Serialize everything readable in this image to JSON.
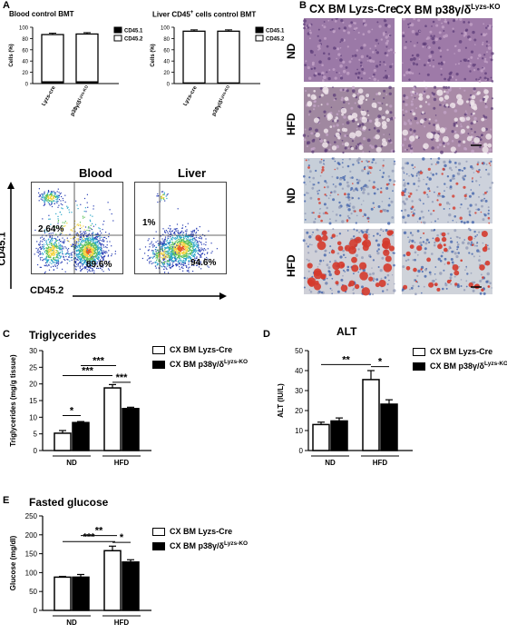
{
  "panel_letters": {
    "a": "A",
    "b": "B",
    "c": "C",
    "d": "D",
    "e": "E"
  },
  "panel_a": {
    "chart1": {
      "title": "Blood control BMT",
      "ylabel": "Cells (%)",
      "legend": [
        "CD45.1",
        "CD45.2"
      ],
      "categories": [
        "Lyzs-cre",
        "p38γ/δ Lyzs-KO"
      ]
    },
    "chart2": {
      "title": "Liver CD45+ cells control BMT",
      "title_sup": "+",
      "ylabel": "Cells (%)",
      "legend": [
        "CD45.1",
        "CD45.2"
      ],
      "categories": [
        "Lyzs-cre",
        "p38γ/δ Lyzs-KO"
      ]
    },
    "flow": {
      "blood_title": "Blood",
      "liver_title": "Liver",
      "ylabel": "CD45.1",
      "xlabel": "CD45.2",
      "blood_top_pct": "2.64%",
      "blood_bottom_pct": "89.6%",
      "liver_top_pct": "1%",
      "liver_bottom_pct": "94.6%"
    }
  },
  "panel_b": {
    "col1": "CX BM Lyzs-Cre",
    "col2_main": "CX BM p38γ/δ",
    "col2_sup": "Lyzs-KO",
    "rows": [
      "ND",
      "HFD",
      "ND",
      "HFD"
    ]
  },
  "legend": {
    "cre": "CX BM Lyzs-Cre",
    "ko_main": "CX BM p38γ/δ",
    "ko_sup": "Lyzs-KO"
  },
  "colors": {
    "he_bg": "#9a7aa3",
    "oro_bg": "#c9d0dc",
    "oil_red": "#d43a2c",
    "flow_hot": "#f2d23a"
  },
  "chart_data": [
    {
      "id": "blood_bmt",
      "type": "bar",
      "title": "Blood control BMT",
      "ylabel": "Cells (%)",
      "categories": [
        "Lyzs-cre",
        "p38γ/δ Lyzs-KO"
      ],
      "series": [
        {
          "name": "CD45.1",
          "values": [
            3,
            3
          ]
        },
        {
          "name": "CD45.2",
          "values": [
            84,
            85
          ]
        }
      ],
      "ylim": [
        0,
        100
      ],
      "yticks": [
        0,
        20,
        40,
        60,
        80,
        100
      ]
    },
    {
      "id": "liver_bmt",
      "type": "bar",
      "title": "Liver CD45+ cells control BMT",
      "ylabel": "Cells (%)",
      "categories": [
        "Lyzs-cre",
        "p38γ/δ Lyzs-KO"
      ],
      "series": [
        {
          "name": "CD45.1",
          "values": [
            1,
            1
          ]
        },
        {
          "name": "CD45.2",
          "values": [
            92,
            92
          ]
        }
      ],
      "ylim": [
        0,
        100
      ],
      "yticks": [
        0,
        20,
        40,
        60,
        80,
        100
      ]
    },
    {
      "id": "triglycerides",
      "type": "bar",
      "title": "Triglycerides",
      "ylabel": "Triglycerides (mg/g tissue)",
      "groups": [
        "ND",
        "HFD"
      ],
      "series": [
        {
          "name": "CX BM Lyzs-Cre",
          "values": [
            5.2,
            18.8
          ],
          "err": [
            0.8,
            1.0
          ]
        },
        {
          "name": "CX BM p38γ/δ Lyzs-KO",
          "values": [
            8.4,
            12.6
          ],
          "err": [
            0.3,
            0.4
          ]
        }
      ],
      "ylim": [
        0,
        30
      ],
      "yticks": [
        0,
        5,
        10,
        15,
        20,
        25,
        30
      ],
      "sig": [
        "*",
        "***",
        "***",
        "***"
      ]
    },
    {
      "id": "alt",
      "type": "bar",
      "title": "ALT",
      "ylabel": "ALT (IU/L)",
      "groups": [
        "ND",
        "HFD"
      ],
      "series": [
        {
          "name": "CX BM Lyzs-Cre",
          "values": [
            13,
            35.5
          ],
          "err": [
            1.2,
            4.5
          ]
        },
        {
          "name": "CX BM p38γ/δ Lyzs-KO",
          "values": [
            14.8,
            23.2
          ],
          "err": [
            1.5,
            2.2
          ]
        }
      ],
      "ylim": [
        0,
        50
      ],
      "yticks": [
        0,
        10,
        20,
        30,
        40,
        50
      ],
      "sig": [
        "**",
        "*"
      ]
    },
    {
      "id": "glucose",
      "type": "bar",
      "title": "Fasted glucose",
      "ylabel": "Glucose (mg/dl)",
      "groups": [
        "ND",
        "HFD"
      ],
      "series": [
        {
          "name": "CX BM Lyzs-Cre",
          "values": [
            88,
            158
          ],
          "err": [
            2,
            12
          ]
        },
        {
          "name": "CX BM p38γ/δ Lyzs-KO",
          "values": [
            88,
            128
          ],
          "err": [
            7,
            6
          ]
        }
      ],
      "ylim": [
        0,
        250
      ],
      "yticks": [
        0,
        50,
        100,
        150,
        200,
        250
      ],
      "sig": [
        "***",
        "**",
        "*"
      ]
    }
  ]
}
